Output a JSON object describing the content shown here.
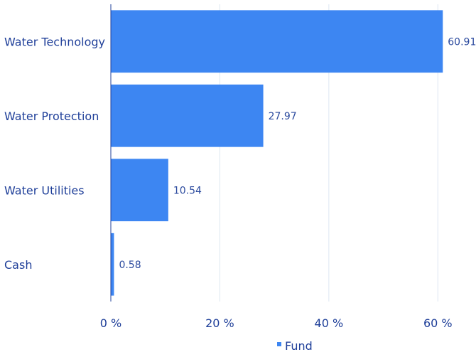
{
  "chart_data": {
    "type": "bar",
    "orientation": "horizontal",
    "categories": [
      "Water Technology",
      "Water Protection",
      "Water Utilities",
      "Cash"
    ],
    "series": [
      {
        "name": "Fund",
        "values": [
          60.91,
          27.97,
          10.54,
          0.58
        ],
        "color": "#3d86f2"
      }
    ],
    "value_labels": [
      "60.91",
      "27.97",
      "10.54",
      "0.58"
    ],
    "x_ticks": [
      0,
      20,
      40,
      60
    ],
    "x_tick_labels": [
      "0 %",
      "20 %",
      "40 %",
      "60 %"
    ],
    "xlim": [
      0,
      67
    ],
    "title": "",
    "xlabel": "",
    "ylabel": "",
    "grid": true,
    "legend_position": "bottom",
    "colors": {
      "bar": "#3d86f2",
      "text": "#1f3f99",
      "grid": "#dde6f2",
      "axis": "#1f3f99"
    }
  }
}
